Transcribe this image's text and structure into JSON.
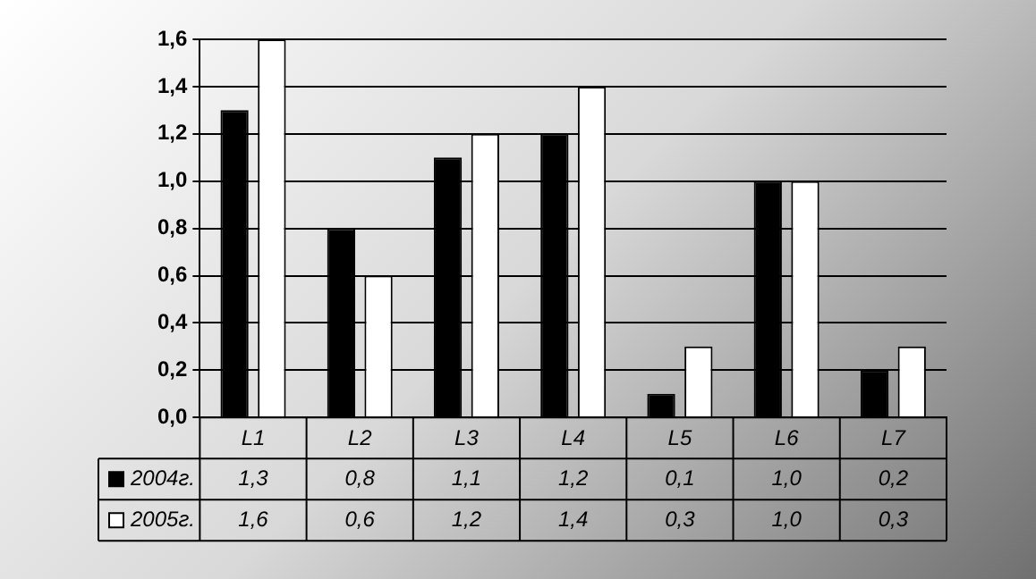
{
  "chart_data": {
    "type": "bar",
    "categories": [
      "L1",
      "L2",
      "L3",
      "L4",
      "L5",
      "L6",
      "L7"
    ],
    "series": [
      {
        "name": "2004г.",
        "color": "#000000",
        "values": [
          1.3,
          0.8,
          1.1,
          1.2,
          0.1,
          1.0,
          0.2
        ],
        "value_labels": [
          "1,3",
          "0,8",
          "1,1",
          "1,2",
          "0,1",
          "1,0",
          "0,2"
        ]
      },
      {
        "name": "2005г.",
        "color": "#ffffff",
        "values": [
          1.6,
          0.6,
          1.2,
          1.4,
          0.3,
          1.0,
          0.3
        ],
        "value_labels": [
          "1,6",
          "0,6",
          "1,2",
          "1,4",
          "0,3",
          "1,0",
          "0,3"
        ]
      }
    ],
    "ylim": [
      0,
      1.6
    ],
    "yticks": [
      {
        "value": 0,
        "label": "0,0"
      },
      {
        "value": 0.2,
        "label": "0,2"
      },
      {
        "value": 0.4,
        "label": "0,4"
      },
      {
        "value": 0.6,
        "label": "0,6"
      },
      {
        "value": 0.8,
        "label": "0,8"
      },
      {
        "value": 1.0,
        "label": "1,0"
      },
      {
        "value": 1.2,
        "label": "1,2"
      },
      {
        "value": 1.4,
        "label": "1,4"
      },
      {
        "value": 1.6,
        "label": "1,6"
      }
    ],
    "grid": "y",
    "legend": "bottom"
  }
}
